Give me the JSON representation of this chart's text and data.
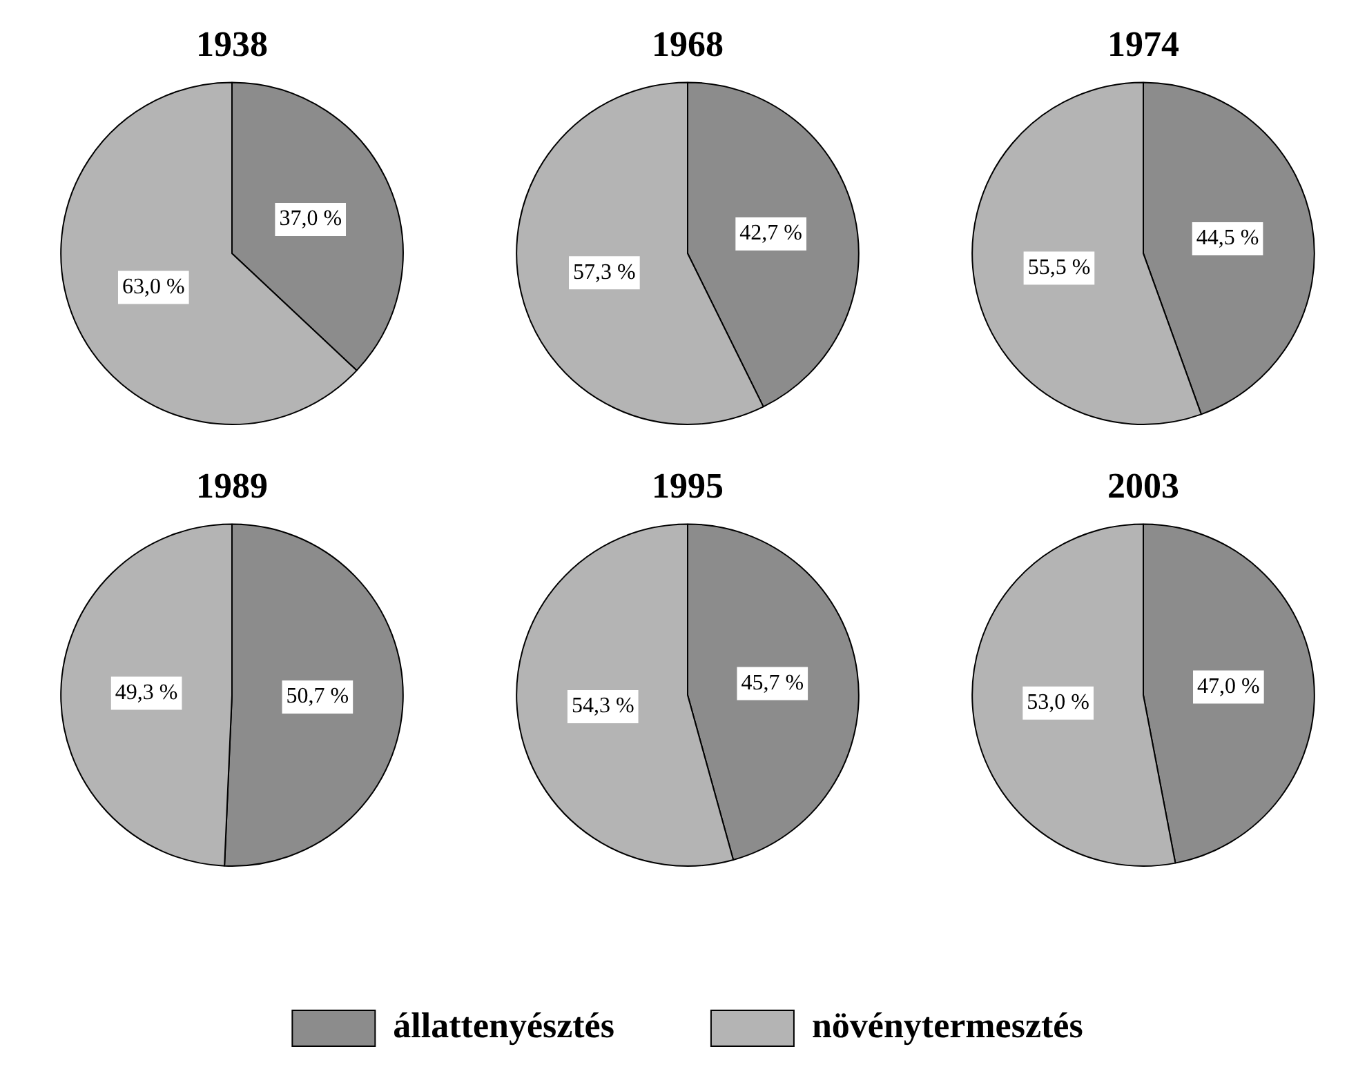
{
  "chart_data": [
    {
      "type": "pie",
      "title": "1938",
      "categories": [
        "állattenyésztés",
        "növénytermesztés"
      ],
      "values": [
        37.0,
        63.0
      ],
      "value_labels": [
        "37,0 %",
        "63,0 %"
      ],
      "colors": [
        "#8c8c8c",
        "#b4b4b4"
      ],
      "legend": "bottom"
    },
    {
      "type": "pie",
      "title": "1968",
      "categories": [
        null,
        null
      ],
      "values": [
        42.7,
        57.3
      ],
      "value_labels": [
        "42,7 %",
        "57,3 %"
      ],
      "colors": [
        "#8c8c8c",
        "#b4b4b4"
      ]
    },
    {
      "type": "pie",
      "title": "1974",
      "categories": [
        null,
        null
      ],
      "values": [
        44.5,
        55.5
      ],
      "value_labels": [
        "44,5 %",
        "55,5 %"
      ],
      "colors": [
        "#8c8c8c",
        "#b4b4b4"
      ]
    },
    {
      "type": "pie",
      "title": "1989",
      "categories": [
        null,
        null
      ],
      "values": [
        50.7,
        49.3
      ],
      "value_labels": [
        "50,7 %",
        "49,3 %"
      ],
      "colors": [
        "#8c8c8c",
        "#b4b4b4"
      ]
    },
    {
      "type": "pie",
      "title": "1995",
      "categories": [
        null,
        null
      ],
      "values": [
        45.7,
        54.3
      ],
      "value_labels": [
        "45,7 %",
        "54,3 %"
      ],
      "colors": [
        "#8c8c8c",
        "#b4b4b4"
      ]
    },
    {
      "type": "pie",
      "title": "2003",
      "categories": [
        null,
        null
      ],
      "values": [
        47.0,
        53.0
      ],
      "value_labels": [
        "47,0 %",
        "53,0 %"
      ],
      "colors": [
        "#8c8c8c",
        "#b4b4b4"
      ]
    }
  ]
}
